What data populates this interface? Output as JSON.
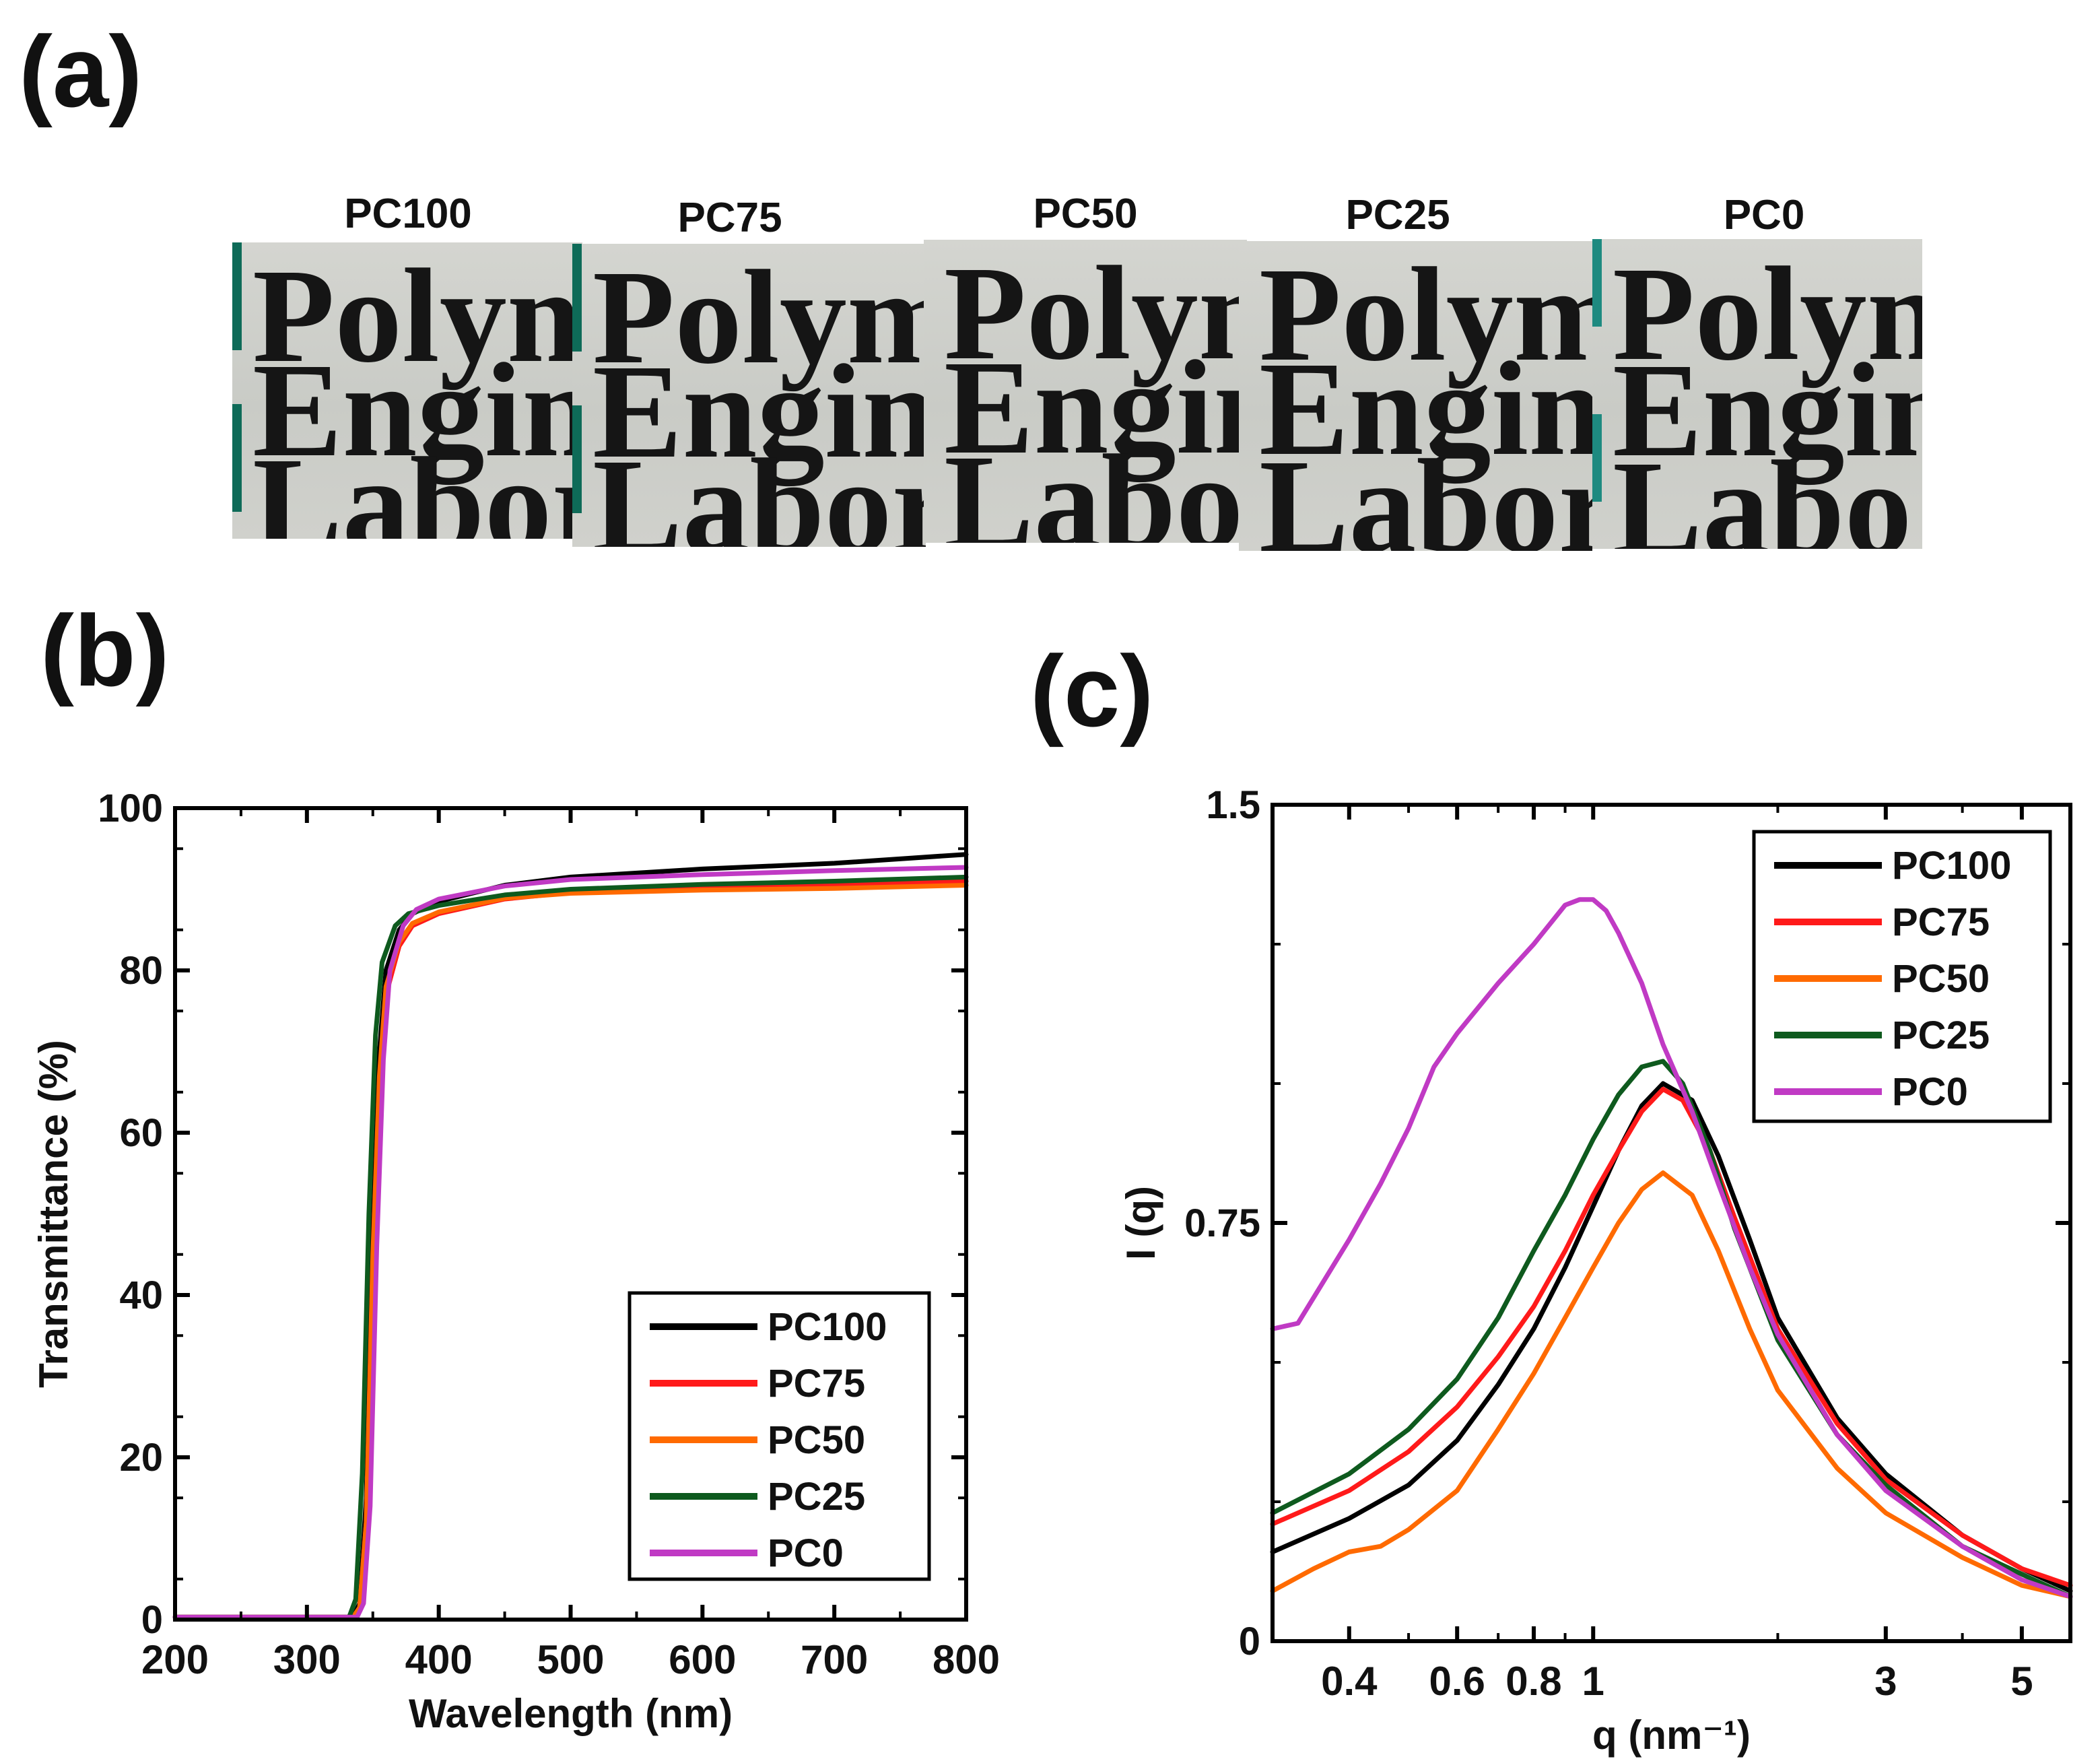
{
  "panel_labels": {
    "a": "(a)",
    "b": "(b)",
    "c": "(c)"
  },
  "photos": {
    "samples": [
      {
        "name": "PC100",
        "lines": [
          "Polyn",
          "Engin",
          "Labor"
        ]
      },
      {
        "name": "PC75",
        "lines": [
          "Polym",
          "Engine",
          "Labor:"
        ]
      },
      {
        "name": "PC50",
        "lines": [
          "Polyn",
          "Engin",
          "Labor"
        ]
      },
      {
        "name": "PC25",
        "lines": [
          "Polym",
          "Engine",
          "Labor"
        ]
      },
      {
        "name": "PC0",
        "lines": [
          "Polyn",
          "Engin",
          "Labo:"
        ]
      }
    ]
  },
  "chart_data": [
    {
      "type": "line",
      "id": "b",
      "xlabel": "Wavelength (nm)",
      "ylabel": "Transmittance (%)",
      "xlim": [
        200,
        800
      ],
      "ylim": [
        0,
        100
      ],
      "xticks": [
        200,
        300,
        400,
        500,
        600,
        700,
        800
      ],
      "yticks": [
        0,
        20,
        40,
        60,
        80,
        100
      ],
      "legend_position": "lower-right",
      "series": [
        {
          "name": "PC100",
          "color": "#000000",
          "x": [
            200,
            335,
            340,
            345,
            350,
            355,
            360,
            370,
            380,
            400,
            450,
            500,
            600,
            700,
            800
          ],
          "y": [
            0.3,
            0.3,
            2,
            15,
            48,
            70,
            80,
            85,
            87,
            88.5,
            90.5,
            91.5,
            92.5,
            93.2,
            94.3
          ]
        },
        {
          "name": "PC75",
          "color": "#ff1a1a",
          "x": [
            200,
            335,
            340,
            345,
            350,
            355,
            360,
            370,
            380,
            400,
            450,
            500,
            600,
            700,
            800
          ],
          "y": [
            0.3,
            0.3,
            1.5,
            12,
            44,
            66,
            77,
            83,
            85.5,
            87,
            88.8,
            89.6,
            90.2,
            90.6,
            91
          ]
        },
        {
          "name": "PC50",
          "color": "#ff6a00",
          "x": [
            200,
            335,
            340,
            345,
            350,
            355,
            360,
            370,
            380,
            400,
            450,
            500,
            600,
            700,
            800
          ],
          "y": [
            0.3,
            0.3,
            1.5,
            12,
            45,
            67,
            78,
            83.5,
            85.8,
            87.2,
            88.9,
            89.5,
            89.9,
            90.1,
            90.5
          ]
        },
        {
          "name": "PC25",
          "color": "#0e5a1e",
          "x": [
            200,
            332,
            337,
            342,
            347,
            352,
            357,
            367,
            377,
            400,
            450,
            500,
            600,
            700,
            800
          ],
          "y": [
            0.3,
            0.3,
            2.5,
            18,
            50,
            72,
            81,
            85.5,
            87,
            88,
            89.3,
            90,
            90.6,
            91,
            91.5
          ]
        },
        {
          "name": "PC0",
          "color": "#c03ac4",
          "x": [
            200,
            338,
            343,
            348,
            353,
            358,
            363,
            373,
            383,
            400,
            450,
            500,
            600,
            700,
            800
          ],
          "y": [
            0.3,
            0.3,
            2,
            14,
            46,
            69,
            80,
            85.5,
            87.5,
            88.8,
            90.4,
            91.2,
            91.8,
            92.3,
            92.7
          ]
        }
      ]
    },
    {
      "type": "line",
      "id": "c",
      "xlabel": "q (nm⁻¹)",
      "ylabel": "I (q)",
      "xscale": "log",
      "xlim": [
        0.3,
        6
      ],
      "ylim": [
        0,
        1.5
      ],
      "xticks": [
        0.4,
        0.6,
        0.8,
        1,
        3,
        5
      ],
      "xtick_labels": [
        "0.4",
        "0.6",
        "0.8",
        "1",
        "3",
        "5"
      ],
      "yticks": [
        0,
        0.75,
        1.5
      ],
      "ytick_labels": [
        "0",
        "0.75",
        "1.5"
      ],
      "legend_position": "top-right",
      "series": [
        {
          "name": "PC100",
          "color": "#000000",
          "x": [
            0.3,
            0.4,
            0.5,
            0.6,
            0.7,
            0.8,
            0.9,
            1.0,
            1.1,
            1.2,
            1.3,
            1.45,
            1.6,
            1.8,
            2.0,
            2.5,
            3.0,
            4.0,
            5.0,
            6.0
          ],
          "y": [
            0.16,
            0.22,
            0.28,
            0.36,
            0.46,
            0.56,
            0.67,
            0.78,
            0.88,
            0.96,
            1.0,
            0.97,
            0.87,
            0.72,
            0.58,
            0.4,
            0.3,
            0.19,
            0.13,
            0.09
          ]
        },
        {
          "name": "PC75",
          "color": "#ff1a1a",
          "x": [
            0.3,
            0.4,
            0.5,
            0.6,
            0.7,
            0.8,
            0.9,
            1.0,
            1.1,
            1.2,
            1.3,
            1.4,
            1.55,
            1.7,
            2.0,
            2.5,
            3.0,
            4.0,
            5.0,
            6.0
          ],
          "y": [
            0.21,
            0.27,
            0.34,
            0.42,
            0.51,
            0.6,
            0.7,
            0.8,
            0.88,
            0.95,
            0.99,
            0.97,
            0.88,
            0.76,
            0.56,
            0.39,
            0.29,
            0.19,
            0.13,
            0.1
          ]
        },
        {
          "name": "PC50",
          "color": "#ff6a00",
          "x": [
            0.3,
            0.35,
            0.4,
            0.45,
            0.5,
            0.6,
            0.7,
            0.8,
            0.9,
            1.0,
            1.1,
            1.2,
            1.3,
            1.45,
            1.6,
            1.8,
            2.0,
            2.5,
            3.0,
            4.0,
            5.0,
            6.0
          ],
          "y": [
            0.09,
            0.13,
            0.16,
            0.17,
            0.2,
            0.27,
            0.38,
            0.48,
            0.58,
            0.67,
            0.75,
            0.81,
            0.84,
            0.8,
            0.7,
            0.56,
            0.45,
            0.31,
            0.23,
            0.15,
            0.1,
            0.08
          ]
        },
        {
          "name": "PC25",
          "color": "#0e5a1e",
          "x": [
            0.3,
            0.4,
            0.5,
            0.6,
            0.7,
            0.8,
            0.9,
            1.0,
            1.1,
            1.2,
            1.3,
            1.4,
            1.55,
            1.7,
            2.0,
            2.5,
            3.0,
            4.0,
            5.0,
            6.0
          ],
          "y": [
            0.23,
            0.3,
            0.38,
            0.47,
            0.58,
            0.7,
            0.8,
            0.9,
            0.98,
            1.03,
            1.04,
            1.0,
            0.88,
            0.74,
            0.54,
            0.37,
            0.28,
            0.17,
            0.12,
            0.08
          ]
        },
        {
          "name": "PC0",
          "color": "#c03ac4",
          "x": [
            0.3,
            0.33,
            0.4,
            0.45,
            0.5,
            0.55,
            0.6,
            0.7,
            0.8,
            0.9,
            0.95,
            1.0,
            1.05,
            1.1,
            1.2,
            1.3,
            1.45,
            1.6,
            1.8,
            2.0,
            2.5,
            3.0,
            4.0,
            5.0,
            6.0
          ],
          "y": [
            0.56,
            0.57,
            0.72,
            0.82,
            0.92,
            1.03,
            1.09,
            1.18,
            1.25,
            1.32,
            1.33,
            1.33,
            1.31,
            1.27,
            1.18,
            1.07,
            0.95,
            0.82,
            0.67,
            0.55,
            0.37,
            0.27,
            0.17,
            0.11,
            0.08
          ]
        }
      ]
    }
  ]
}
